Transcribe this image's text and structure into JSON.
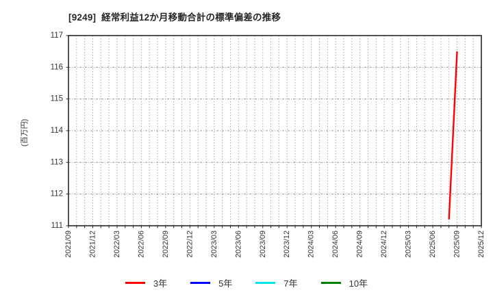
{
  "chart_data": {
    "type": "line",
    "title": "[9249]  経常利益12か月移動合計の標準偏差の推移",
    "ylabel": "(百万円)",
    "ylim": [
      111,
      117
    ],
    "ytick_labels": [
      "111",
      "112",
      "113",
      "114",
      "115",
      "116",
      "117"
    ],
    "x_axis": {
      "start": "2021/09",
      "end": "2025/12",
      "minor_unit": "month",
      "tick_labels": [
        "2021/09",
        "2021/12",
        "2022/03",
        "2022/06",
        "2022/09",
        "2022/12",
        "2023/03",
        "2023/06",
        "2023/09",
        "2023/12",
        "2024/03",
        "2024/06",
        "2024/09",
        "2024/12",
        "2025/03",
        "2025/06",
        "2025/09",
        "2025/12"
      ]
    },
    "grid": true,
    "legend_position": "bottom",
    "series": [
      {
        "name": "3年",
        "color": "#ff0000",
        "points": [
          [
            "2025/08",
            111.2
          ],
          [
            "2025/09",
            116.5
          ]
        ]
      },
      {
        "name": "5年",
        "color": "#0000ff",
        "points": []
      },
      {
        "name": "7年",
        "color": "#00e5ee",
        "points": []
      },
      {
        "name": "10年",
        "color": "#008000",
        "points": []
      }
    ]
  }
}
